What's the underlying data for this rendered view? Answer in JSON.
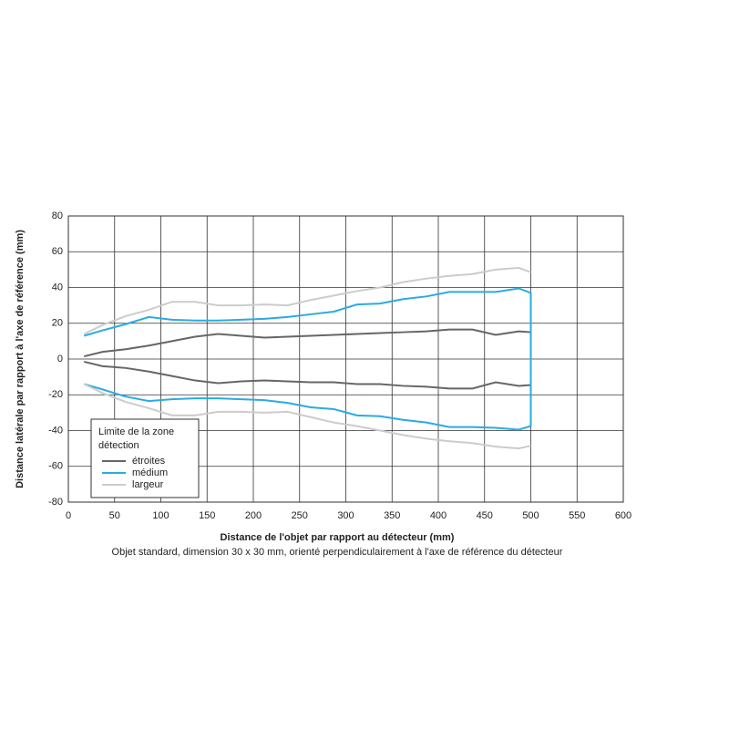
{
  "chart_data": {
    "type": "line",
    "xlabel": "Distance de l'objet par rapport au détecteur (mm)",
    "subtitle": "Objet standard, dimension 30 x 30 mm, orienté perpendiculairement à l'axe de référence du détecteur",
    "ylabel": "Distance latérale par rapport à l'axe de référence (mm)",
    "legend_title": [
      "Limite de la zone",
      "détection"
    ],
    "xlim": [
      0,
      600
    ],
    "xticks": [
      0,
      50,
      100,
      150,
      200,
      250,
      300,
      350,
      400,
      450,
      500,
      550,
      600
    ],
    "ylim": [
      -80,
      80
    ],
    "yticks": [
      -80,
      -60,
      -40,
      -20,
      0,
      20,
      40,
      60,
      80
    ],
    "grid": true,
    "x": [
      17,
      37,
      62,
      87,
      112,
      137,
      162,
      187,
      212,
      237,
      262,
      287,
      312,
      337,
      362,
      387,
      412,
      437,
      462,
      487,
      500
    ],
    "series": [
      {
        "name": "étroites",
        "color": "#666666",
        "closed": true,
        "upper": [
          1.5,
          4,
          5.5,
          7.5,
          10,
          12.5,
          14,
          13,
          12,
          12.5,
          13,
          13.5,
          14,
          14.5,
          15,
          15.5,
          16.5,
          16.5,
          13.5,
          15.5,
          15
        ],
        "lower": [
          -1.5,
          -4,
          -5,
          -7,
          -9.5,
          -12,
          -13.5,
          -12.5,
          -12,
          -12.5,
          -13,
          -13,
          -14,
          -14,
          -15,
          -15.5,
          -16.5,
          -16.5,
          -13,
          -15,
          -14.5
        ]
      },
      {
        "name": "médium",
        "color": "#29abe2",
        "closed": true,
        "upper": [
          13,
          16,
          19.5,
          23.5,
          22,
          21.5,
          21.5,
          22,
          22.5,
          23.5,
          25,
          26.5,
          30.5,
          31,
          33.5,
          35,
          37.5,
          37.5,
          37.5,
          39.5,
          37
        ],
        "lower": [
          -14,
          -17,
          -21,
          -23.5,
          -22.5,
          -22,
          -22,
          -22.5,
          -23,
          -24.5,
          -27,
          -28,
          -31.5,
          -32,
          -34,
          -35.5,
          -38,
          -38,
          -38.5,
          -39.5,
          -37.5
        ]
      },
      {
        "name": "largeur",
        "color": "#cccccc",
        "closed": false,
        "upper": [
          14,
          19,
          24,
          27.5,
          32,
          32,
          30,
          30,
          30.5,
          30,
          33,
          35.5,
          38,
          40,
          43,
          45,
          46.5,
          47.5,
          50,
          51,
          48.5
        ],
        "lower": [
          -14,
          -19,
          -24,
          -27.5,
          -31.5,
          -31.5,
          -29.5,
          -29.5,
          -30,
          -29.5,
          -32.5,
          -35.5,
          -37.5,
          -40,
          -42.5,
          -44.5,
          -46,
          -47,
          -49,
          -50,
          -48.5
        ]
      }
    ]
  }
}
